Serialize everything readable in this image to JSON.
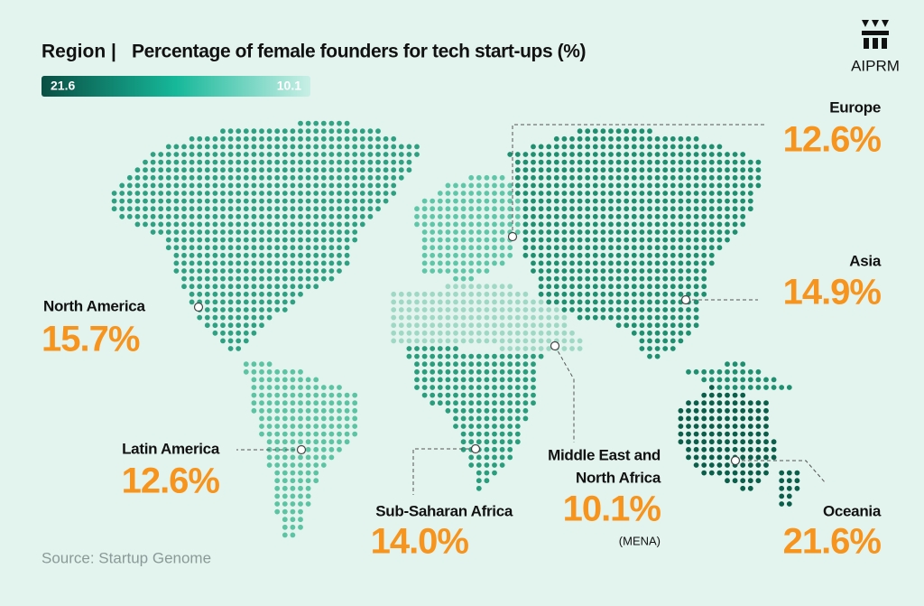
{
  "header": {
    "title_prefix": "Region |",
    "title": "Percentage of female founders for tech start-ups (%)",
    "legend": {
      "max": "21.6",
      "min": "10.1"
    },
    "logo": "AIPRM"
  },
  "regions": [
    {
      "name": "Europe",
      "value": "12.6%"
    },
    {
      "name": "Asia",
      "value": "14.9%"
    },
    {
      "name": "North America",
      "value": "15.7%"
    },
    {
      "name": "Latin America",
      "value": "12.6%"
    },
    {
      "name": "Sub-Saharan Africa",
      "value": "14.0%"
    },
    {
      "name_lines": [
        "Middle East and",
        "North Africa"
      ],
      "value": "10.1%",
      "note": "(MENA)"
    },
    {
      "name": "Oceania",
      "value": "21.6%"
    }
  ],
  "footer": {
    "source": "Source: Startup Genome"
  }
}
